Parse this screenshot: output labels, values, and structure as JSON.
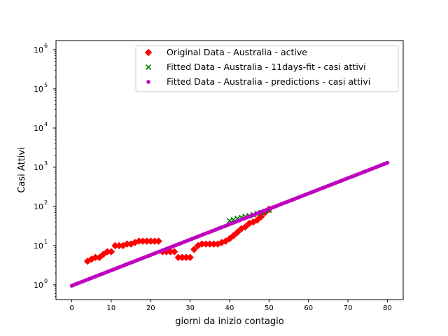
{
  "chart_data": {
    "type": "scatter",
    "title": "",
    "xlabel": "giorni da inizio contagio",
    "ylabel": "Casi Attivi",
    "yscale": "log",
    "xlim": [
      -4,
      84
    ],
    "ylim": [
      0.42,
      1700000
    ],
    "x_ticks": [
      0,
      10,
      20,
      30,
      40,
      50,
      60,
      70,
      80
    ],
    "y_ticks": [
      {
        "value": 1,
        "label": "10",
        "exp": "0"
      },
      {
        "value": 10,
        "label": "10",
        "exp": "1"
      },
      {
        "value": 100,
        "label": "10",
        "exp": "2"
      },
      {
        "value": 1000,
        "label": "10",
        "exp": "3"
      },
      {
        "value": 10000,
        "label": "10",
        "exp": "4"
      },
      {
        "value": 100000,
        "label": "10",
        "exp": "5"
      },
      {
        "value": 1000000,
        "label": "10",
        "exp": "6"
      }
    ],
    "grid": false,
    "legend_position": "upper-right",
    "series": [
      {
        "name": "Original Data - Australia - active",
        "marker": "diamond",
        "color": "#ff0000",
        "x": [
          4,
          5,
          6,
          7,
          8,
          9,
          10,
          11,
          12,
          13,
          14,
          15,
          16,
          17,
          18,
          19,
          20,
          21,
          22,
          23,
          24,
          25,
          26,
          27,
          28,
          29,
          30,
          31,
          32,
          33,
          34,
          35,
          36,
          37,
          38,
          39,
          40,
          41,
          42,
          43,
          44,
          45,
          46,
          47,
          48,
          49,
          50
        ],
        "y": [
          4,
          4.5,
          5,
          5,
          6,
          7,
          7,
          10,
          10,
          10,
          11,
          11,
          12,
          13,
          13,
          13,
          13,
          13,
          13,
          7,
          7,
          7,
          7,
          5,
          5,
          5,
          5,
          8,
          10,
          11,
          11,
          11,
          11,
          11,
          12,
          13,
          15,
          18,
          22,
          27,
          30,
          37,
          40,
          45,
          55,
          70,
          85
        ]
      },
      {
        "name": "Fitted Data - Australia -  11days-fit - casi attivi",
        "marker": "x",
        "color": "#008000",
        "x": [
          40,
          41,
          42,
          43,
          44,
          45,
          46,
          47,
          48,
          49,
          50
        ],
        "y": [
          43,
          46,
          49,
          52,
          55,
          58,
          62,
          66,
          70,
          75,
          80
        ]
      },
      {
        "name": "Fitted Data - Australia - predictions - casi attivi",
        "marker": "dot",
        "color": "#bf00bf",
        "x_range": [
          0,
          80
        ],
        "step": 0.5,
        "y_start": 0.95,
        "y_end": 1300
      }
    ]
  }
}
